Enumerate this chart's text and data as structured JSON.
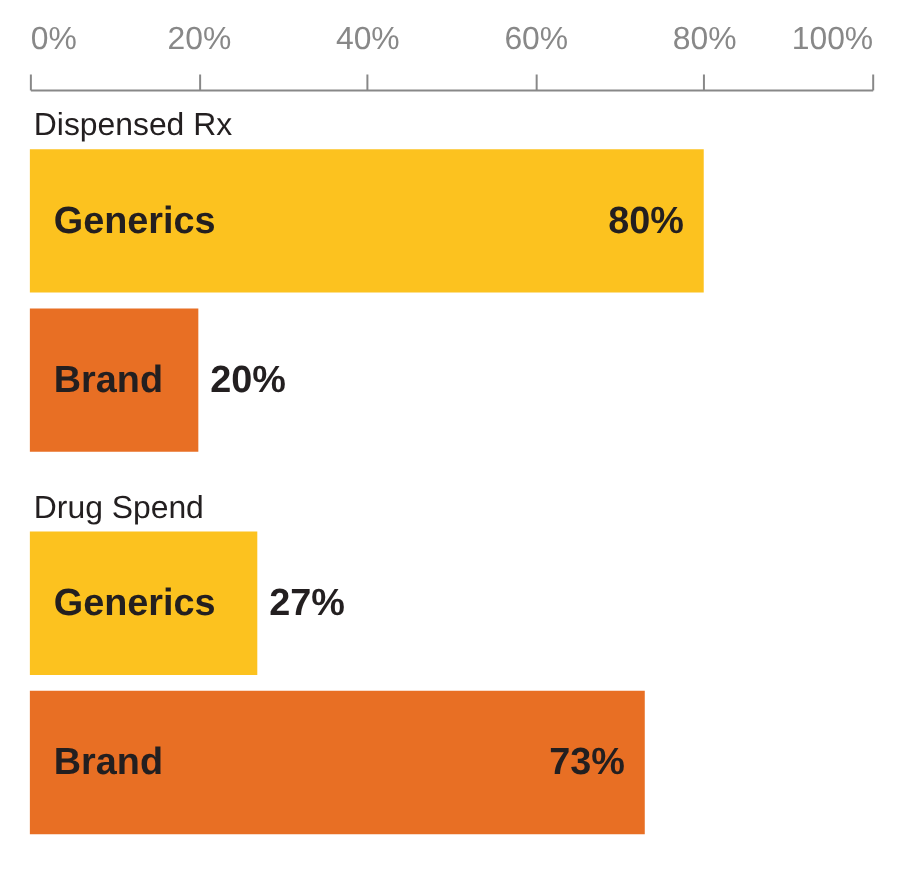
{
  "chart_data": [
    {
      "type": "bar",
      "orientation": "horizontal",
      "title": "Dispensed Rx",
      "categories": [
        "Generics",
        "Brand"
      ],
      "values": [
        80,
        20
      ],
      "colors": [
        "#fcc21f",
        "#e86f24"
      ],
      "value_labels": [
        "80%",
        "20%"
      ],
      "xlim": [
        0,
        100
      ],
      "xticks": [
        {
          "value": 0,
          "label": "0%"
        },
        {
          "value": 20,
          "label": "20%"
        },
        {
          "value": 40,
          "label": "40%"
        },
        {
          "value": 60,
          "label": "60%"
        },
        {
          "value": 80,
          "label": "80%"
        },
        {
          "value": 100,
          "label": "100%"
        }
      ]
    },
    {
      "type": "bar",
      "orientation": "horizontal",
      "title": "Drug Spend",
      "categories": [
        "Generics",
        "Brand"
      ],
      "values": [
        27,
        73
      ],
      "colors": [
        "#fcc21f",
        "#e86f24"
      ],
      "value_labels": [
        "27%",
        "73%"
      ],
      "xlim": [
        0,
        100
      ],
      "tick_labels": false
    }
  ]
}
